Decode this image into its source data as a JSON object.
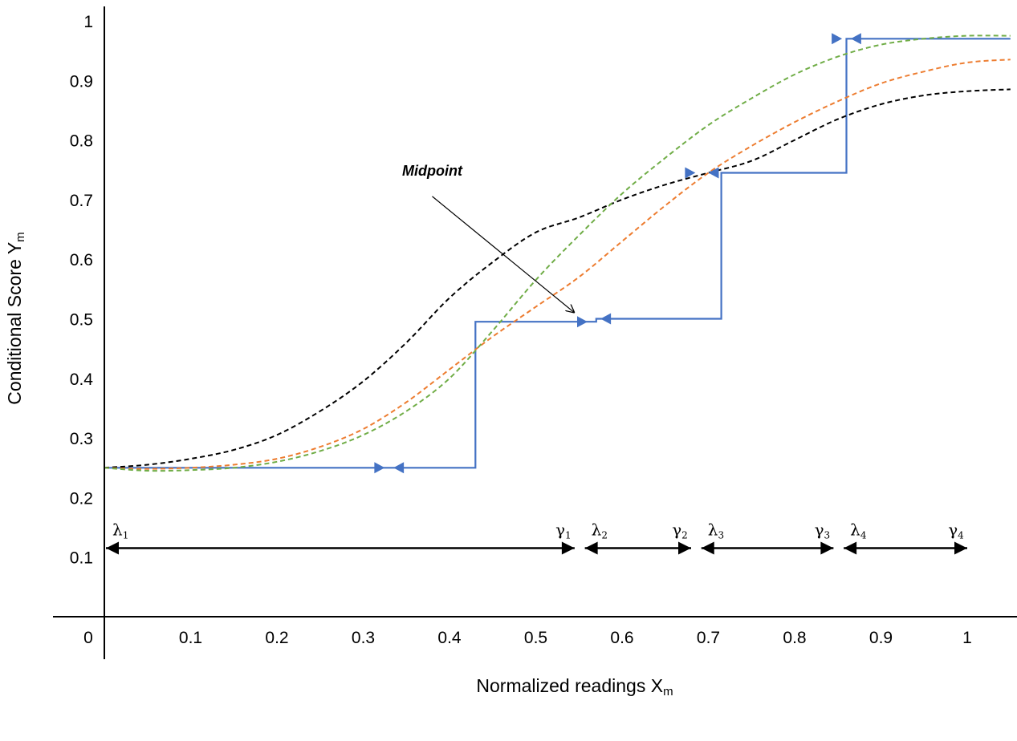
{
  "chart_data": {
    "type": "line",
    "title": "",
    "xlabel": "Normalized readings X",
    "xlabel_sub": "m",
    "ylabel": "Conditional Score Y",
    "ylabel_sub": "m",
    "xlim": [
      0,
      1
    ],
    "ylim": [
      0,
      1
    ],
    "grid": false,
    "x_ticks": [
      "0",
      "0.1",
      "0.2",
      "0.3",
      "0.4",
      "0.5",
      "0.6",
      "0.7",
      "0.8",
      "0.9",
      "1"
    ],
    "y_ticks": [
      "0.1",
      "0.2",
      "0.3",
      "0.4",
      "0.5",
      "0.6",
      "0.7",
      "0.8",
      "0.9",
      "1"
    ],
    "colors": {
      "step": "#4472c4",
      "black": "#000000",
      "orange": "#ed7d31",
      "green": "#70ad47"
    },
    "series": [
      {
        "style": "step",
        "color": "#4472c4",
        "x": [
          0,
          0.43,
          0.43,
          0.57,
          0.57,
          0.715,
          0.715,
          0.86,
          0.86,
          1.05
        ],
        "y": [
          0.25,
          0.25,
          0.495,
          0.495,
          0.5,
          0.5,
          0.745,
          0.745,
          0.97,
          0.97
        ]
      },
      {
        "style": "dashed",
        "color": "#000000",
        "x": [
          0,
          0.05,
          0.1,
          0.15,
          0.2,
          0.25,
          0.3,
          0.35,
          0.4,
          0.45,
          0.5,
          0.55,
          0.6,
          0.65,
          0.7,
          0.75,
          0.8,
          0.85,
          0.9,
          0.95,
          1.0,
          1.05
        ],
        "y": [
          0.25,
          0.255,
          0.265,
          0.28,
          0.305,
          0.345,
          0.395,
          0.46,
          0.535,
          0.595,
          0.645,
          0.67,
          0.7,
          0.725,
          0.745,
          0.765,
          0.8,
          0.835,
          0.86,
          0.875,
          0.882,
          0.885
        ]
      },
      {
        "style": "dashed",
        "color": "#ed7d31",
        "x": [
          0,
          0.05,
          0.1,
          0.15,
          0.2,
          0.25,
          0.3,
          0.35,
          0.4,
          0.45,
          0.5,
          0.55,
          0.6,
          0.65,
          0.7,
          0.75,
          0.8,
          0.85,
          0.9,
          0.95,
          1.0,
          1.05
        ],
        "y": [
          0.25,
          0.248,
          0.25,
          0.255,
          0.265,
          0.285,
          0.315,
          0.36,
          0.415,
          0.47,
          0.52,
          0.57,
          0.63,
          0.69,
          0.745,
          0.79,
          0.83,
          0.865,
          0.895,
          0.915,
          0.93,
          0.935
        ]
      },
      {
        "style": "dashed",
        "color": "#70ad47",
        "x": [
          0,
          0.05,
          0.1,
          0.15,
          0.2,
          0.25,
          0.3,
          0.35,
          0.4,
          0.45,
          0.5,
          0.55,
          0.6,
          0.65,
          0.7,
          0.75,
          0.8,
          0.85,
          0.9,
          0.95,
          1.0,
          1.05
        ],
        "y": [
          0.25,
          0.245,
          0.246,
          0.25,
          0.26,
          0.278,
          0.305,
          0.345,
          0.4,
          0.48,
          0.565,
          0.64,
          0.71,
          0.77,
          0.825,
          0.87,
          0.91,
          0.94,
          0.96,
          0.97,
          0.975,
          0.975
        ]
      }
    ],
    "step_arrowheads": [
      {
        "x": 0.325,
        "y": 0.25,
        "dir": "right"
      },
      {
        "x": 0.335,
        "y": 0.25,
        "dir": "left"
      },
      {
        "x": 0.56,
        "y": 0.495,
        "dir": "right"
      },
      {
        "x": 0.575,
        "y": 0.5,
        "dir": "left"
      },
      {
        "x": 0.685,
        "y": 0.745,
        "dir": "right"
      },
      {
        "x": 0.7,
        "y": 0.745,
        "dir": "left"
      },
      {
        "x": 0.855,
        "y": 0.97,
        "dir": "right"
      },
      {
        "x": 0.865,
        "y": 0.97,
        "dir": "left"
      }
    ],
    "intervals": [
      {
        "start": 0,
        "end": 0.545,
        "start_label": "λ",
        "start_sub": "1",
        "end_label": "γ",
        "end_sub": "1"
      },
      {
        "start": 0.555,
        "end": 0.68,
        "start_label": "λ",
        "start_sub": "2",
        "end_label": "γ",
        "end_sub": "2"
      },
      {
        "start": 0.69,
        "end": 0.845,
        "start_label": "λ",
        "start_sub": "3",
        "end_label": "γ",
        "end_sub": "3"
      },
      {
        "start": 0.855,
        "end": 1.0,
        "start_label": "λ",
        "start_sub": "4",
        "end_label": "γ",
        "end_sub": "4"
      }
    ],
    "interval_y": 0.115,
    "annotations": [
      {
        "text": "Midpoint",
        "arrow_from": {
          "x": 0.38,
          "y": 0.7
        },
        "arrow_to": {
          "x": 0.545,
          "y": 0.51
        }
      }
    ]
  }
}
